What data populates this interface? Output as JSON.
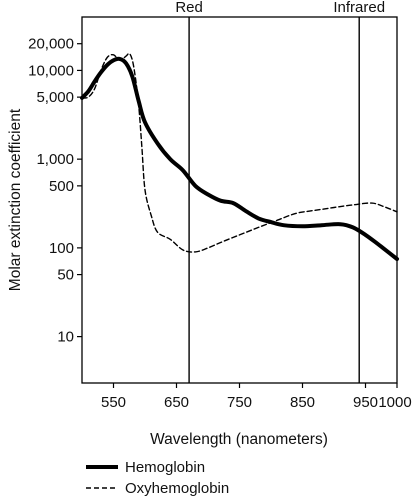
{
  "chart_data": {
    "type": "line",
    "xlabel": "Wavelength (nanometers)",
    "ylabel": "Molar extinction coefficient",
    "xlim": [
      500,
      1000
    ],
    "ylim": [
      3,
      40000
    ],
    "y_scale": "log",
    "grid": false,
    "legend_position": "bottom-left",
    "x_ticks": [
      {
        "value": 550,
        "label": "550"
      },
      {
        "value": 650,
        "label": "650"
      },
      {
        "value": 750,
        "label": "750"
      },
      {
        "value": 850,
        "label": "850"
      },
      {
        "value": 950,
        "label": "950"
      },
      {
        "value": 1000,
        "label": "1000"
      }
    ],
    "y_ticks": [
      {
        "value": 10,
        "label": "10"
      },
      {
        "value": 50,
        "label": "50"
      },
      {
        "value": 100,
        "label": "100"
      },
      {
        "value": 500,
        "label": "500"
      },
      {
        "value": 1000,
        "label": "1,000"
      },
      {
        "value": 5000,
        "label": "5,000"
      },
      {
        "value": 10000,
        "label": "10,000"
      },
      {
        "value": 20000,
        "label": "20,000"
      }
    ],
    "reference_lines": [
      {
        "x": 670,
        "label": "Red"
      },
      {
        "x": 940,
        "label": "Infrared"
      }
    ],
    "series": [
      {
        "name": "Hemoglobin",
        "style": "solid-thick",
        "color": "#000000",
        "x": [
          500,
          510,
          520,
          530,
          540,
          550,
          560,
          570,
          580,
          590,
          600,
          620,
          640,
          660,
          680,
          700,
          720,
          740,
          760,
          780,
          800,
          820,
          850,
          880,
          910,
          930,
          950,
          970,
          1000
        ],
        "y": [
          4900,
          5800,
          7500,
          9500,
          11500,
          13000,
          13500,
          12000,
          8500,
          4500,
          2600,
          1500,
          1000,
          750,
          500,
          400,
          340,
          320,
          260,
          215,
          195,
          180,
          175,
          180,
          185,
          170,
          140,
          110,
          75
        ]
      },
      {
        "name": "Oxyhemoglobin",
        "style": "dashed",
        "color": "#000000",
        "x": [
          500,
          510,
          520,
          530,
          540,
          550,
          560,
          570,
          575,
          580,
          585,
          590,
          595,
          600,
          610,
          620,
          640,
          660,
          680,
          700,
          720,
          750,
          780,
          810,
          840,
          870,
          900,
          930,
          960,
          980,
          1000
        ],
        "y": [
          4900,
          5000,
          6200,
          10000,
          14000,
          15000,
          13000,
          14500,
          15500,
          13000,
          8000,
          4000,
          1400,
          450,
          230,
          150,
          125,
          95,
          90,
          100,
          115,
          140,
          170,
          205,
          245,
          265,
          285,
          305,
          320,
          290,
          255
        ]
      }
    ]
  }
}
